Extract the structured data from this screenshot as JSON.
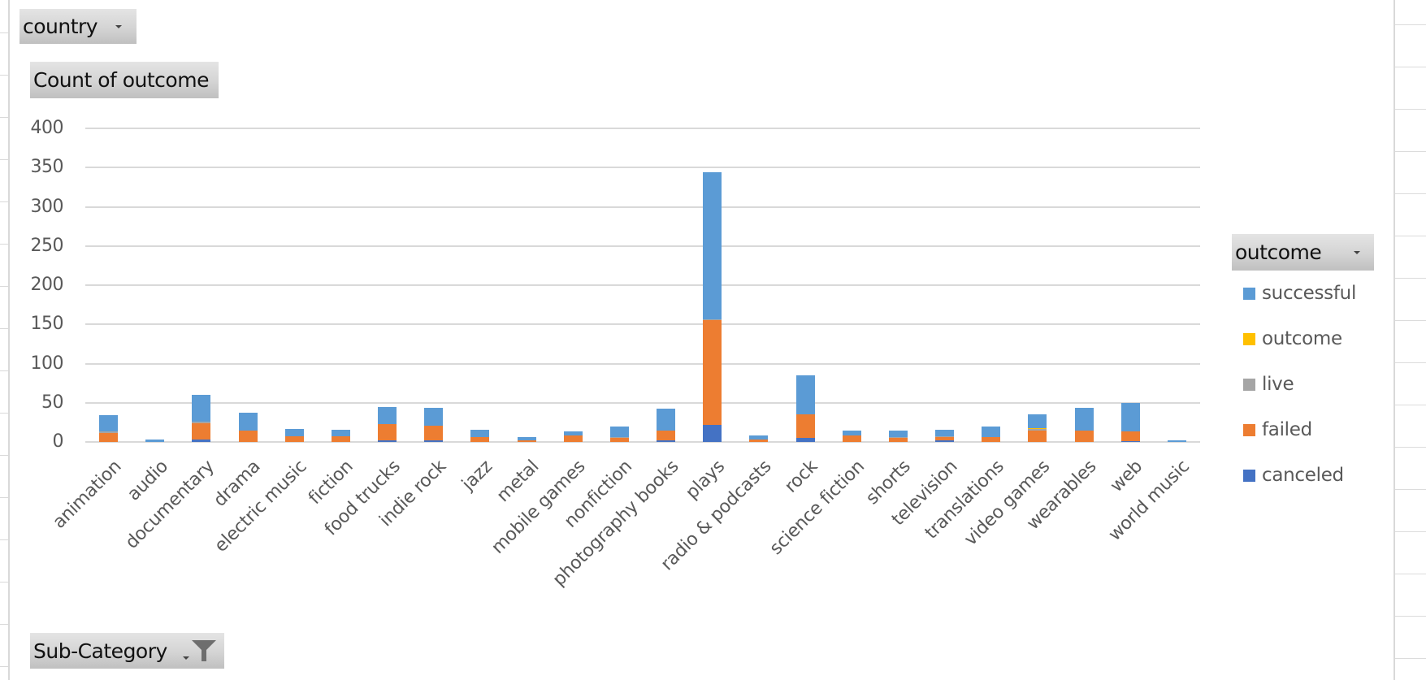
{
  "filters": {
    "report_filter_label": "country",
    "values_label": "Count of outcome",
    "legend_field_label": "outcome",
    "axis_field_label": "Sub-Category"
  },
  "colors": {
    "successful": "#5b9bd5",
    "outcome": "#ffc000",
    "live": "#a5a5a5",
    "failed": "#ed7d31",
    "canceled": "#4472c4",
    "gridline": "#d9d9d9",
    "axis_text": "#595959"
  },
  "legend": {
    "items": [
      {
        "key": "successful",
        "label": "successful"
      },
      {
        "key": "outcome",
        "label": "outcome"
      },
      {
        "key": "live",
        "label": "live"
      },
      {
        "key": "failed",
        "label": "failed"
      },
      {
        "key": "canceled",
        "label": "canceled"
      }
    ]
  },
  "chart_data": {
    "type": "bar",
    "stacked": true,
    "title": "",
    "xlabel": "Sub-Category",
    "ylabel": "Count of outcome",
    "ylim": [
      0,
      400
    ],
    "yticks": [
      0,
      50,
      100,
      150,
      200,
      250,
      300,
      350,
      400
    ],
    "grid": true,
    "legend_position": "right",
    "categories": [
      "animation",
      "audio",
      "documentary",
      "drama",
      "electric music",
      "fiction",
      "food trucks",
      "indie rock",
      "jazz",
      "metal",
      "mobile games",
      "nonfiction",
      "photography books",
      "plays",
      "radio & podcasts",
      "rock",
      "science fiction",
      "shorts",
      "television",
      "translations",
      "video games",
      "wearables",
      "web",
      "world music"
    ],
    "series": [
      {
        "name": "canceled",
        "values": [
          0,
          0,
          3,
          0,
          0,
          0,
          2,
          2,
          0,
          0,
          0,
          0,
          2,
          22,
          0,
          5,
          0,
          0,
          2,
          0,
          0,
          0,
          1,
          0
        ]
      },
      {
        "name": "failed",
        "values": [
          11,
          0,
          21,
          14,
          7,
          7,
          21,
          19,
          6,
          2,
          8,
          5,
          12,
          133,
          3,
          30,
          8,
          5,
          4,
          6,
          15,
          14,
          13,
          0
        ]
      },
      {
        "name": "live",
        "values": [
          2,
          0,
          2,
          0,
          0,
          0,
          0,
          0,
          0,
          0,
          0,
          1,
          1,
          2,
          0,
          0,
          0,
          1,
          1,
          0,
          2,
          1,
          0,
          0
        ]
      },
      {
        "name": "outcome",
        "values": [
          0,
          0,
          0,
          0,
          0,
          0,
          0,
          0,
          0,
          0,
          0,
          0,
          0,
          0,
          0,
          0,
          0,
          0,
          0,
          0,
          1,
          0,
          0,
          0
        ]
      },
      {
        "name": "successful",
        "values": [
          21,
          3,
          34,
          23,
          10,
          9,
          22,
          23,
          10,
          4,
          5,
          14,
          27,
          187,
          5,
          50,
          6,
          9,
          9,
          14,
          17,
          29,
          36,
          2
        ]
      }
    ]
  }
}
